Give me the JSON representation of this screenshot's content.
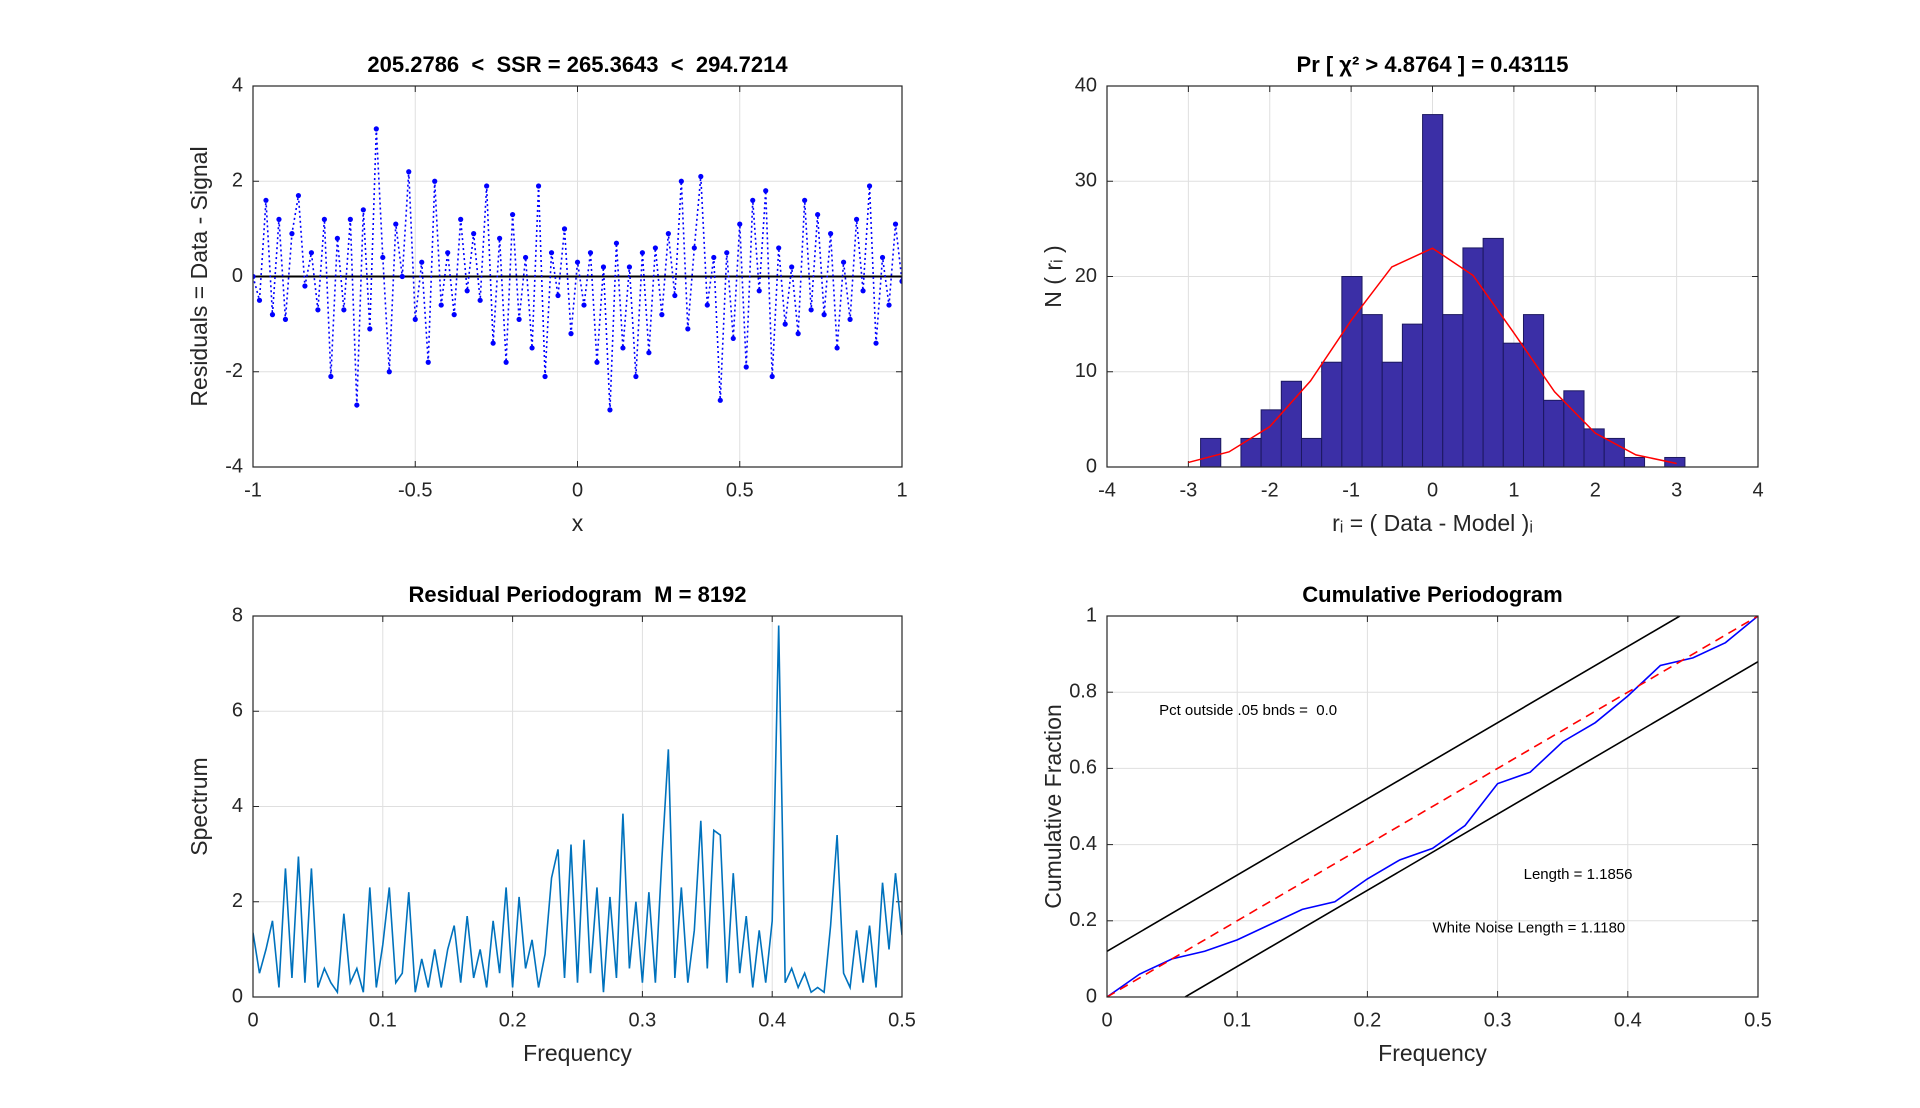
{
  "chart_data": [
    {
      "type": "line",
      "title": "205.2786  <  SSR = 265.3643  <  294.7214",
      "xlabel": "x",
      "ylabel": "Residuals = Data - Signal",
      "x": [
        -1,
        -0.98,
        -0.96,
        -0.94,
        -0.92,
        -0.9,
        -0.88,
        -0.86,
        -0.84,
        -0.82,
        -0.8,
        -0.78,
        -0.76,
        -0.74,
        -0.72,
        -0.7,
        -0.68,
        -0.66,
        -0.64,
        -0.62,
        -0.6,
        -0.58,
        -0.56,
        -0.54,
        -0.52,
        -0.5,
        -0.48,
        -0.46,
        -0.44,
        -0.42,
        -0.4,
        -0.38,
        -0.36,
        -0.34,
        -0.32,
        -0.3,
        -0.28,
        -0.26,
        -0.24,
        -0.22,
        -0.2,
        -0.18,
        -0.16,
        -0.14,
        -0.12,
        -0.1,
        -0.08,
        -0.06,
        -0.04,
        -0.02,
        0,
        0.02,
        0.04,
        0.06,
        0.08,
        0.1,
        0.12,
        0.14,
        0.16,
        0.18,
        0.2,
        0.22,
        0.24,
        0.26,
        0.28,
        0.3,
        0.32,
        0.34,
        0.36,
        0.38,
        0.4,
        0.42,
        0.44,
        0.46,
        0.48,
        0.5,
        0.52,
        0.54,
        0.56,
        0.58,
        0.6,
        0.62,
        0.64,
        0.66,
        0.68,
        0.7,
        0.72,
        0.74,
        0.76,
        0.78,
        0.8,
        0.82,
        0.84,
        0.86,
        0.88,
        0.9,
        0.92,
        0.94,
        0.96,
        0.98,
        1
      ],
      "series": [
        {
          "color": "#0000ff",
          "dash": "dotted",
          "marker": true,
          "values": [
            0,
            -0.5,
            1.6,
            -0.8,
            1.2,
            -0.9,
            0.9,
            1.7,
            -0.2,
            0.5,
            -0.7,
            1.2,
            -2.1,
            0.8,
            -0.7,
            1.2,
            -2.7,
            1.4,
            -1.1,
            3.1,
            0.4,
            -2.0,
            1.1,
            0.0,
            2.2,
            -0.9,
            0.3,
            -1.8,
            2.0,
            -0.6,
            0.5,
            -0.8,
            1.2,
            -0.3,
            0.9,
            -0.5,
            1.9,
            -1.4,
            0.8,
            -1.8,
            1.3,
            -0.9,
            0.4,
            -1.5,
            1.9,
            -2.1,
            0.5,
            -0.4,
            1.0,
            -1.2,
            0.3,
            -0.6,
            0.5,
            -1.8,
            0.2,
            -2.8,
            0.7,
            -1.5,
            0.2,
            -2.1,
            0.5,
            -1.6,
            0.6,
            -0.8,
            0.9,
            -0.4,
            2.0,
            -1.1,
            0.6,
            2.1,
            -0.6,
            0.4,
            -2.6,
            0.5,
            -1.3,
            1.1,
            -1.9,
            1.6,
            -0.3,
            1.8,
            -2.1,
            0.6,
            -1.0,
            0.2,
            -1.2,
            1.6,
            -0.7,
            1.3,
            -0.8,
            0.9,
            -1.5,
            0.3,
            -0.9,
            1.2,
            -0.3,
            1.9,
            -1.4,
            0.4,
            -0.6,
            1.1,
            -0.1
          ]
        }
      ],
      "reference_line": 0,
      "xlim": [
        -1,
        1
      ],
      "xticks": [
        -1,
        -0.5,
        0,
        0.5,
        1
      ],
      "ylim": [
        -4,
        4
      ],
      "yticks": [
        -4,
        -2,
        0,
        2,
        4
      ],
      "grid": true
    },
    {
      "type": "histogram",
      "title": "Pr [ χ² > 4.8764 ] = 0.43115",
      "xlabel": "rᵢ = ( Data - Model )ᵢ",
      "ylabel": "N ( rᵢ )",
      "bins": [
        -2.85,
        -2.602,
        -2.354,
        -2.106,
        -1.858,
        -1.61,
        -1.362,
        -1.114,
        -0.866,
        -0.618,
        -0.37,
        -0.122,
        0.126,
        0.374,
        0.622,
        0.87,
        1.118,
        1.366,
        1.614,
        1.862,
        2.11,
        2.358,
        2.606,
        2.854,
        3.102
      ],
      "counts": [
        3,
        0,
        3,
        6,
        9,
        3,
        11,
        20,
        16,
        11,
        15,
        37,
        16,
        23,
        24,
        13,
        16,
        7,
        8,
        4,
        3,
        1,
        0,
        1
      ],
      "color": "#3b2fa6",
      "edge_color": "#1c1860",
      "curve": {
        "color": "#ff0000",
        "x": [
          -3,
          -2.5,
          -2,
          -1.5,
          -1,
          -0.5,
          0,
          0.5,
          1,
          1.5,
          2,
          2.5,
          3
        ],
        "values": [
          0.48,
          1.59,
          4.24,
          9.03,
          15.39,
          21.0,
          22.97,
          20.1,
          14.07,
          7.9,
          3.55,
          1.27,
          0.37
        ]
      },
      "xlim": [
        -4,
        4
      ],
      "xticks": [
        -4,
        -3,
        -2,
        -1,
        0,
        1,
        2,
        3,
        4
      ],
      "ylim": [
        0,
        40
      ],
      "yticks": [
        0,
        10,
        20,
        30,
        40
      ],
      "grid": true
    },
    {
      "type": "line",
      "title": "Residual Periodogram  M = 8192",
      "xlabel": "Frequency",
      "ylabel": "Spectrum",
      "x": [
        0,
        0.005,
        0.01,
        0.015,
        0.02,
        0.025,
        0.03,
        0.035,
        0.04,
        0.045,
        0.05,
        0.055,
        0.06,
        0.065,
        0.07,
        0.075,
        0.08,
        0.085,
        0.09,
        0.095,
        0.1,
        0.105,
        0.11,
        0.115,
        0.12,
        0.125,
        0.13,
        0.135,
        0.14,
        0.145,
        0.15,
        0.155,
        0.16,
        0.165,
        0.17,
        0.175,
        0.18,
        0.185,
        0.19,
        0.195,
        0.2,
        0.205,
        0.21,
        0.215,
        0.22,
        0.225,
        0.23,
        0.235,
        0.24,
        0.245,
        0.25,
        0.255,
        0.26,
        0.265,
        0.27,
        0.275,
        0.28,
        0.285,
        0.29,
        0.295,
        0.3,
        0.305,
        0.31,
        0.315,
        0.32,
        0.325,
        0.33,
        0.335,
        0.34,
        0.345,
        0.35,
        0.355,
        0.36,
        0.365,
        0.37,
        0.375,
        0.38,
        0.385,
        0.39,
        0.395,
        0.4,
        0.405,
        0.41,
        0.415,
        0.42,
        0.425,
        0.43,
        0.435,
        0.44,
        0.445,
        0.45,
        0.455,
        0.46,
        0.465,
        0.47,
        0.475,
        0.48,
        0.485,
        0.49,
        0.495,
        0.5
      ],
      "series": [
        {
          "color": "#0072bd",
          "dash": "solid",
          "values": [
            1.35,
            0.5,
            1.0,
            1.6,
            0.2,
            2.7,
            0.4,
            2.95,
            0.3,
            2.7,
            0.2,
            0.6,
            0.3,
            0.1,
            1.75,
            0.3,
            0.6,
            0.1,
            2.3,
            0.2,
            1.1,
            2.3,
            0.3,
            0.5,
            2.2,
            0.1,
            0.8,
            0.2,
            1.0,
            0.2,
            1.0,
            1.5,
            0.3,
            1.7,
            0.4,
            1.0,
            0.2,
            1.6,
            0.5,
            2.3,
            0.2,
            2.1,
            0.6,
            1.2,
            0.2,
            0.9,
            2.5,
            3.1,
            0.4,
            3.2,
            0.3,
            3.3,
            0.5,
            2.3,
            0.1,
            2.1,
            0.4,
            3.85,
            0.6,
            2.0,
            0.3,
            2.2,
            0.3,
            2.9,
            5.2,
            0.4,
            2.3,
            0.3,
            1.4,
            3.7,
            0.6,
            3.5,
            3.4,
            0.3,
            2.6,
            0.5,
            1.7,
            0.2,
            1.4,
            0.3,
            1.6,
            7.8,
            0.3,
            0.6,
            0.2,
            0.5,
            0.1,
            0.2,
            0.1,
            1.5,
            3.4,
            0.5,
            0.2,
            1.4,
            0.3,
            1.5,
            0.2,
            2.4,
            1.0,
            2.6,
            1.3
          ]
        }
      ],
      "xlim": [
        0,
        0.5
      ],
      "xticks": [
        0,
        0.1,
        0.2,
        0.3,
        0.4,
        0.5
      ],
      "ylim": [
        0,
        8
      ],
      "yticks": [
        0,
        2,
        4,
        6,
        8
      ],
      "grid": true
    },
    {
      "type": "line",
      "title": "Cumulative Periodogram",
      "xlabel": "Frequency",
      "ylabel": "Cumulative Fraction",
      "series": [
        {
          "color": "#000000",
          "dash": "solid",
          "x": [
            0,
            0.44
          ],
          "values": [
            0.12,
            1
          ]
        },
        {
          "color": "#000000",
          "dash": "solid",
          "x": [
            0.06,
            0.5
          ],
          "values": [
            0,
            0.88
          ]
        },
        {
          "color": "#0000ff",
          "dash": "solid",
          "x": [
            0,
            0.025,
            0.05,
            0.075,
            0.1,
            0.125,
            0.15,
            0.175,
            0.2,
            0.225,
            0.25,
            0.275,
            0.3,
            0.325,
            0.35,
            0.375,
            0.4,
            0.425,
            0.45,
            0.475,
            0.5
          ],
          "values": [
            0,
            0.06,
            0.1,
            0.12,
            0.15,
            0.19,
            0.23,
            0.25,
            0.31,
            0.36,
            0.39,
            0.45,
            0.56,
            0.59,
            0.67,
            0.72,
            0.79,
            0.87,
            0.89,
            0.93,
            1
          ]
        },
        {
          "color": "#ff0000",
          "dash": "dashed",
          "x": [
            0,
            0.5
          ],
          "values": [
            0,
            1
          ]
        }
      ],
      "annotations": [
        "Pct outside .05 bnds =  0.0",
        "Length = 1.1856",
        "White Noise Length = 1.1180"
      ],
      "xlim": [
        0,
        0.5
      ],
      "xticks": [
        0,
        0.1,
        0.2,
        0.3,
        0.4,
        0.5
      ],
      "ylim": [
        0,
        1
      ],
      "yticks": [
        0,
        0.2,
        0.4,
        0.6,
        0.8,
        1
      ],
      "grid": true
    }
  ]
}
